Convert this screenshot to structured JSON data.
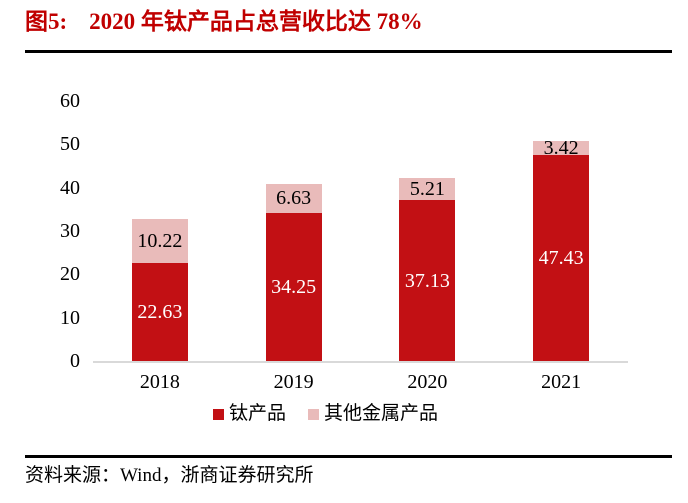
{
  "header": {
    "figure_label": "图5:",
    "title": "2020 年钛产品占总营收比达 78%"
  },
  "footer": {
    "source": "资料来源：Wind，浙商证券研究所"
  },
  "colors": {
    "title_red": "#C00000",
    "bar_red": "#C21014",
    "bar_pink": "#E9BBBA",
    "axis_line": "#D9D9D9",
    "divider": "#000000"
  },
  "chart_data": {
    "type": "bar",
    "stacked": true,
    "title": "2020 年钛产品占总营收比达 78%",
    "categories": [
      "2018",
      "2019",
      "2020",
      "2021"
    ],
    "series": [
      {
        "name": "钛产品",
        "color": "#C21014",
        "label_color": "#FFFFFF",
        "values": [
          22.63,
          34.25,
          37.13,
          47.43
        ],
        "labels": [
          "22.63",
          "34.25",
          "37.13",
          "47.43"
        ]
      },
      {
        "name": "其他金属产品",
        "color": "#E9BBBA",
        "label_color": "#000000",
        "values": [
          10.22,
          6.63,
          5.21,
          3.42
        ],
        "labels": [
          "10.22",
          "6.63",
          "5.21",
          "3.42"
        ]
      }
    ],
    "xlabel": "",
    "ylabel": "",
    "ylim": [
      0,
      60
    ],
    "yticks": [
      0,
      10,
      20,
      30,
      40,
      50,
      60
    ],
    "grid": false,
    "legend_position": "bottom"
  }
}
